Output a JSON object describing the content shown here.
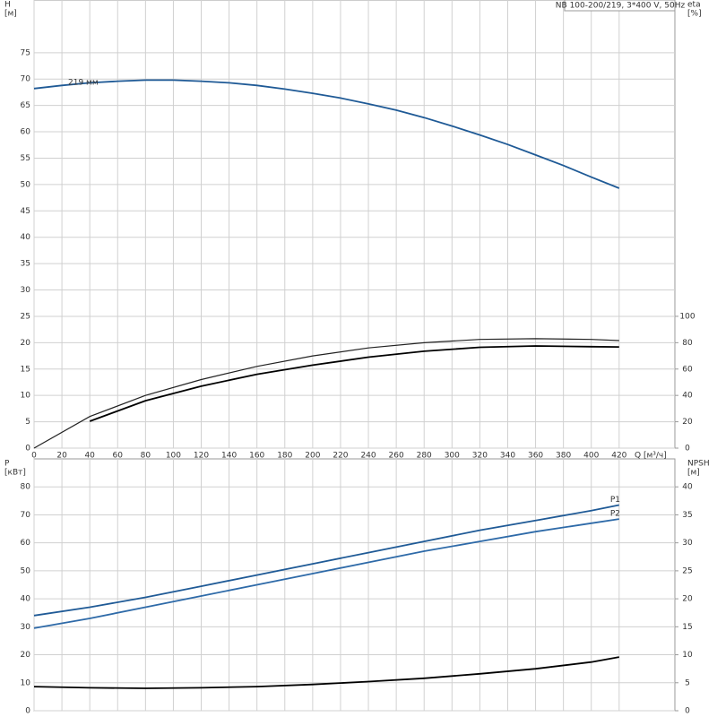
{
  "chart_data": [
    {
      "type": "line",
      "title": "NB 100-200/219, 3*400 V, 50Hz",
      "ylabel": "H",
      "yunit": "[м]",
      "y2label": "eta",
      "y2unit": "[%]",
      "xlabel": "Q [м³/ч]",
      "xlim": [
        0,
        460
      ],
      "xticks": [
        0,
        20,
        40,
        60,
        80,
        100,
        120,
        140,
        160,
        180,
        200,
        220,
        240,
        260,
        280,
        300,
        320,
        340,
        360,
        380,
        400,
        420
      ],
      "ylim": [
        0,
        85
      ],
      "yticks": [
        0,
        5,
        10,
        15,
        20,
        25,
        30,
        35,
        40,
        45,
        50,
        55,
        60,
        65,
        70,
        75
      ],
      "y2lim": [
        0,
        340
      ],
      "y2ticks": [
        0,
        20,
        40,
        60,
        80,
        100
      ],
      "grid": true,
      "series": [
        {
          "name": "219 мм",
          "color": "#1f5a96",
          "x": [
            0,
            20,
            40,
            60,
            80,
            100,
            120,
            140,
            160,
            180,
            200,
            220,
            240,
            260,
            280,
            300,
            320,
            340,
            360,
            380,
            400,
            420
          ],
          "values": [
            68.2,
            68.8,
            69.3,
            69.6,
            69.8,
            69.8,
            69.6,
            69.3,
            68.8,
            68.1,
            67.3,
            66.4,
            65.3,
            64.1,
            62.7,
            61.1,
            59.4,
            57.6,
            55.6,
            53.6,
            51.4,
            49.3
          ]
        },
        {
          "color": "#222222",
          "axis": "y2",
          "x": [
            0,
            40,
            80,
            120,
            160,
            200,
            240,
            280,
            320,
            360,
            400,
            420
          ],
          "values": [
            0,
            24,
            40,
            52,
            62,
            70,
            76,
            80,
            82.5,
            83,
            82.5,
            81.6
          ]
        },
        {
          "color": "#000000",
          "axis": "y2",
          "x": [
            40,
            80,
            120,
            160,
            200,
            240,
            280,
            320,
            360,
            400,
            420
          ],
          "values": [
            20.4,
            36,
            47,
            56,
            63,
            69,
            73.5,
            76.5,
            77.5,
            77,
            76.8
          ]
        }
      ]
    },
    {
      "type": "line",
      "ylabel": "P",
      "yunit": "[кВт]",
      "y2label": "NPSH",
      "y2unit": "[м]",
      "xlim": [
        0,
        460
      ],
      "xticks": [
        0,
        20,
        40,
        60,
        80,
        100,
        120,
        140,
        160,
        180,
        200,
        220,
        240,
        260,
        280,
        300,
        320,
        340,
        360,
        380,
        400,
        420
      ],
      "xtick_labels": false,
      "ylim": [
        0,
        90
      ],
      "yticks": [
        0,
        10,
        20,
        30,
        40,
        50,
        60,
        70,
        80
      ],
      "y2lim": [
        0,
        45
      ],
      "y2ticks": [
        0,
        5,
        10,
        15,
        20,
        25,
        30,
        35,
        40
      ],
      "grid": true,
      "series": [
        {
          "name": "P1",
          "color": "#1f5a96",
          "x": [
            0,
            40,
            80,
            120,
            160,
            200,
            240,
            280,
            320,
            360,
            400,
            420
          ],
          "values": [
            34,
            37,
            40.5,
            44.5,
            48.5,
            52.5,
            56.5,
            60.5,
            64.5,
            68,
            71.5,
            73.5
          ]
        },
        {
          "name": "P2",
          "color": "#2e6aa8",
          "x": [
            0,
            40,
            80,
            120,
            160,
            200,
            240,
            280,
            320,
            360,
            400,
            420
          ],
          "values": [
            29.5,
            33,
            37,
            41,
            45,
            49,
            53,
            57,
            60.5,
            64,
            67,
            68.5
          ]
        },
        {
          "color": "#000000",
          "axis": "y2",
          "x": [
            0,
            40,
            80,
            120,
            160,
            200,
            240,
            280,
            320,
            360,
            400,
            420
          ],
          "values": [
            4.3,
            4.1,
            4.0,
            4.1,
            4.3,
            4.7,
            5.2,
            5.8,
            6.6,
            7.5,
            8.7,
            9.6
          ]
        }
      ]
    }
  ]
}
